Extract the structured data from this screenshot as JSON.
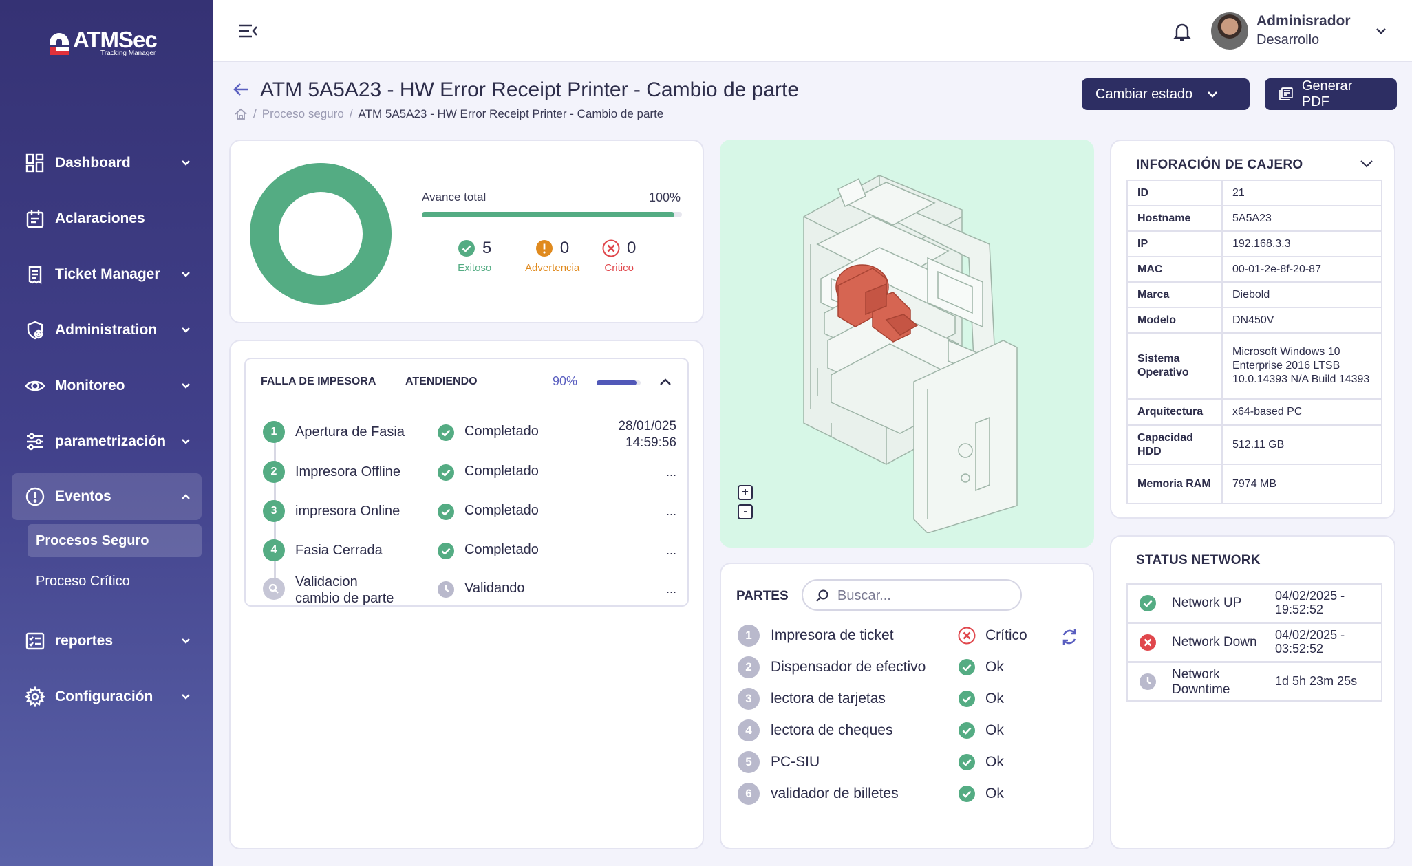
{
  "app": {
    "brand": "ATMSec",
    "brand_sub": "Tracking Manager"
  },
  "sidebar": {
    "items": [
      {
        "label": "Dashboard",
        "icon": "dashboard-icon",
        "has_chevron": true
      },
      {
        "label": "Aclaraciones",
        "icon": "calendar-icon",
        "has_chevron": false
      },
      {
        "label": "Ticket Manager",
        "icon": "clipboard-icon",
        "has_chevron": true
      },
      {
        "label": "Administration",
        "icon": "shield-gear-icon",
        "has_chevron": true
      },
      {
        "label": "Monitoreo",
        "icon": "eye-icon",
        "has_chevron": true
      },
      {
        "label": "parametrización",
        "icon": "sliders-icon",
        "has_chevron": true
      },
      {
        "label": "Eventos",
        "icon": "alert-circle-icon",
        "has_chevron": true,
        "expanded": true
      },
      {
        "label": "reportes",
        "icon": "report-icon",
        "has_chevron": true
      },
      {
        "label": "Configuración",
        "icon": "gear-icon",
        "has_chevron": true
      }
    ],
    "sub_items": [
      "Procesos Seguro",
      "Proceso Crítico"
    ]
  },
  "user": {
    "name": "Adminisrador",
    "role": "Desarrollo"
  },
  "header": {
    "title": "ATM 5A5A23 - HW Error Receipt Printer - Cambio de parte",
    "breadcrumb": [
      "Proceso seguro",
      "ATM 5A5A23 - HW Error Receipt Printer - Cambio de parte"
    ],
    "btn_estado": "Cambiar estado",
    "btn_pdf": "Generar PDF"
  },
  "progress": {
    "label": "Avance total",
    "percent_text": "100%",
    "percent": 100,
    "stats": [
      {
        "value": "5",
        "label": "Exitoso",
        "color": "#54ac83"
      },
      {
        "value": "0",
        "label": "Advertencia",
        "color": "#e08a1e"
      },
      {
        "value": "0",
        "label": "Critico",
        "color": "#e0474c"
      }
    ]
  },
  "falla": {
    "title": "FALLA DE IMPESORA",
    "status": "ATENDIENDO",
    "percent_text": "90%",
    "percent": 90,
    "steps": [
      {
        "num": "1",
        "name": "Apertura de Fasia",
        "status": "Completado",
        "time": "28/01/025\n14:59:56",
        "done": true
      },
      {
        "num": "2",
        "name": "Impresora Offline",
        "status": "Completado",
        "time": "...",
        "done": true
      },
      {
        "num": "3",
        "name": "impresora Online",
        "status": "Completado",
        "time": "...",
        "done": true
      },
      {
        "num": "4",
        "name": "Fasia Cerrada",
        "status": "Completado",
        "time": "...",
        "done": true
      },
      {
        "num": "",
        "name": "Validacion\ncambio de parte",
        "status": "Validando",
        "time": "...",
        "done": false
      }
    ]
  },
  "viewer": {
    "zoom_in": "+",
    "zoom_out": "-"
  },
  "partes": {
    "title": "PARTES",
    "search_placeholder": "Buscar...",
    "items": [
      {
        "num": "1",
        "name": "Impresora de ticket",
        "status": "Crítico",
        "ok": false
      },
      {
        "num": "2",
        "name": "Dispensador de efectivo",
        "status": "Ok",
        "ok": true
      },
      {
        "num": "3",
        "name": "lectora de tarjetas",
        "status": "Ok",
        "ok": true
      },
      {
        "num": "4",
        "name": "lectora de cheques",
        "status": "Ok",
        "ok": true
      },
      {
        "num": "5",
        "name": "PC-SIU",
        "status": "Ok",
        "ok": true
      },
      {
        "num": "6",
        "name": "validador de billetes",
        "status": "Ok",
        "ok": true
      }
    ]
  },
  "cajero": {
    "title": "INFORACIÓN DE CAJERO",
    "rows": [
      {
        "k": "ID",
        "v": "21"
      },
      {
        "k": "Hostname",
        "v": "5A5A23"
      },
      {
        "k": "IP",
        "v": "192.168.3.3"
      },
      {
        "k": "MAC",
        "v": "00-01-2e-8f-20-87"
      },
      {
        "k": "Marca",
        "v": "Diebold"
      },
      {
        "k": "Modelo",
        "v": "DN450V"
      },
      {
        "k": "Sistema Operativo",
        "v": "Microsoft Windows 10 Enterprise 2016 LTSB 10.0.14393 N/A Build 14393"
      },
      {
        "k": "Arquitectura",
        "v": "x64-based PC"
      },
      {
        "k": "Capacidad HDD",
        "v": "512.11 GB"
      },
      {
        "k": "Memoria RAM",
        "v": "7974 MB"
      }
    ]
  },
  "network": {
    "title": "STATUS NETWORK",
    "rows": [
      {
        "label": "Network UP",
        "value": "04/02/2025 -\n19:52:52",
        "state": "up"
      },
      {
        "label": "Network Down",
        "value": "04/02/2025 -\n03:52:52",
        "state": "down"
      },
      {
        "label": "Network\nDowntime",
        "value": "1d 5h 23m 25s",
        "state": "time"
      }
    ]
  },
  "colors": {
    "success": "#54ac83",
    "warning": "#e08a1e",
    "critical": "#e0474c",
    "primary": "#2d2e63",
    "pending": "#b9b9cc"
  }
}
